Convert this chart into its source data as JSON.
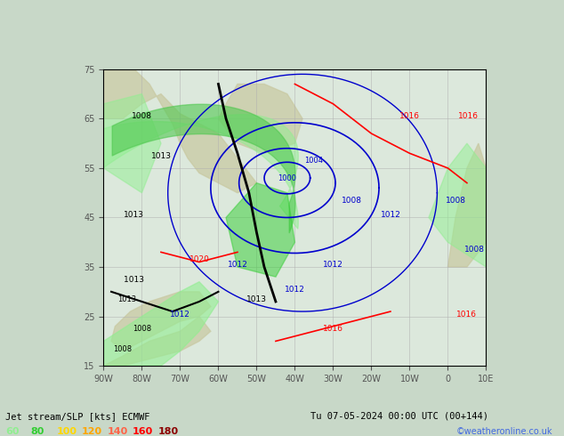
{
  "title_left": "Jet stream/SLP [kts] ECMWF",
  "title_right": "Tu 07-05-2024 00:00 UTC (00+144)",
  "watermark": "©weatheronline.co.uk",
  "legend_values": [
    60,
    80,
    100,
    120,
    140,
    160,
    180
  ],
  "legend_colors": [
    "#90ee90",
    "#32cd32",
    "#ffd700",
    "#ffa500",
    "#ff6347",
    "#ff0000",
    "#8b0000"
  ],
  "background_color": "#e8e8e8",
  "map_bg": "#d8e8f0",
  "grid_color": "#b0b0b0",
  "isobar_color_main": "#000000",
  "isobar_color_blue": "#0000cd",
  "isobar_color_red": "#ff0000",
  "figsize": [
    6.34,
    4.9
  ],
  "dpi": 100
}
